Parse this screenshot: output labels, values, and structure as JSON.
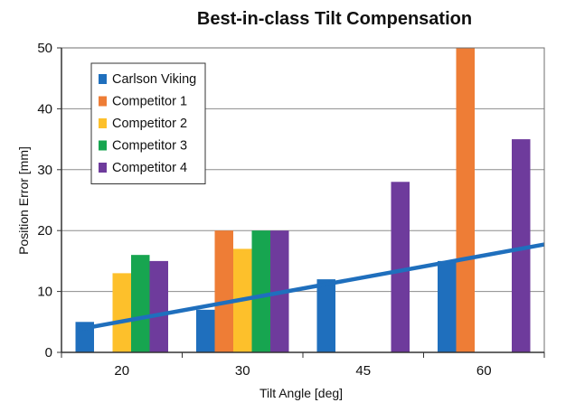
{
  "chart_data": {
    "type": "bar",
    "title": "Best-in-class Tilt Compensation",
    "xlabel": "Tilt Angle [deg]",
    "ylabel": "Position Error [mm]",
    "categories": [
      "20",
      "30",
      "45",
      "60"
    ],
    "ylim": [
      0,
      50
    ],
    "yticks": [
      0,
      10,
      20,
      30,
      40,
      50
    ],
    "grid": true,
    "legend_position": "top-left",
    "series": [
      {
        "name": "Carlson Viking",
        "color": "#1f6fbd",
        "values": [
          5,
          7,
          12,
          15
        ]
      },
      {
        "name": "Competitor 1",
        "color": "#ee7d36",
        "values": [
          null,
          20,
          null,
          50
        ]
      },
      {
        "name": "Competitor 2",
        "color": "#fdc02b",
        "values": [
          13,
          17,
          null,
          null
        ]
      },
      {
        "name": "Competitor 3",
        "color": "#17a550",
        "values": [
          16,
          20,
          null,
          null
        ]
      },
      {
        "name": "Competitor 4",
        "color": "#6e3b9c",
        "values": [
          15,
          20,
          28,
          35
        ]
      }
    ],
    "trendline": {
      "series": "Carlson Viking",
      "color": "#1f6fbd",
      "points": [
        {
          "x": "20",
          "y": 3.8
        },
        {
          "x": "60",
          "y": 17.3
        }
      ]
    }
  }
}
